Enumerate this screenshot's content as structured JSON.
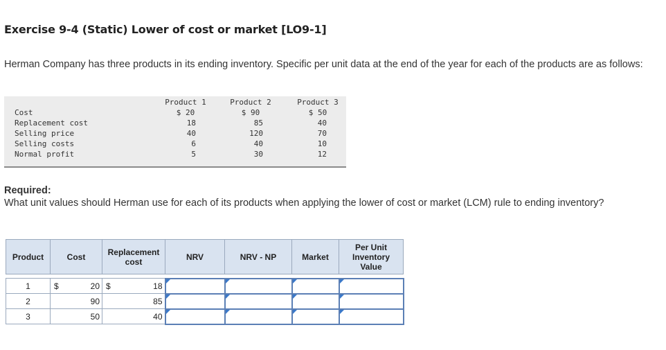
{
  "title": "Exercise 9-4 (Static) Lower of cost or market [LO9-1]",
  "intro": "Herman Company has three products in its ending inventory. Specific per unit data at the end of the year for each of the products are as follows:",
  "data_table": {
    "row_labels": [
      "Cost",
      "Replacement cost",
      "Selling price",
      "Selling costs",
      "Normal profit"
    ],
    "products": [
      {
        "header": "Product 1",
        "values": [
          "$ 20",
          "18",
          "40",
          "6",
          "5"
        ]
      },
      {
        "header": "Product 2",
        "values": [
          "$ 90",
          "85",
          "120",
          "40",
          "30"
        ]
      },
      {
        "header": "Product 3",
        "values": [
          "$ 50",
          "40",
          "70",
          "10",
          "12"
        ]
      }
    ]
  },
  "required": {
    "label": "Required:",
    "text": "What unit values should Herman use for each of its products when applying the lower of cost or market (LCM) rule to ending inventory?"
  },
  "answer_table": {
    "headers": {
      "product": "Product",
      "cost": "Cost",
      "replacement": "Replacement cost",
      "nrv": "NRV",
      "nrv_np": "NRV - NP",
      "market": "Market",
      "per_unit": "Per Unit Inventory Value"
    },
    "currency": "$",
    "rows": [
      {
        "product": "1",
        "cost": "20",
        "replacement": "18",
        "nrv": "",
        "nrv_np": "",
        "market": "",
        "per_unit": ""
      },
      {
        "product": "2",
        "cost": "90",
        "replacement": "85",
        "nrv": "",
        "nrv_np": "",
        "market": "",
        "per_unit": ""
      },
      {
        "product": "3",
        "cost": "50",
        "replacement": "40",
        "nrv": "",
        "nrv_np": "",
        "market": "",
        "per_unit": ""
      }
    ]
  },
  "colors": {
    "header_bg": "#d9e3f0",
    "input_border": "#5b7fb5",
    "data_box_bg": "#ececec"
  }
}
